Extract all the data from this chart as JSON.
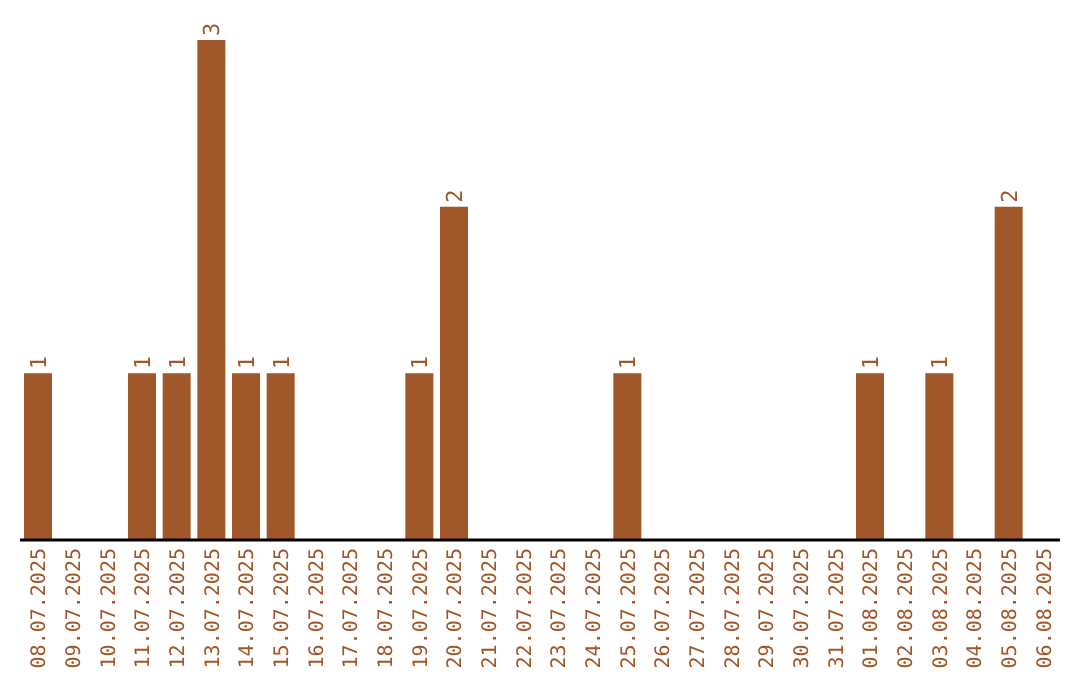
{
  "chart_data": {
    "type": "bar",
    "categories": [
      "08.07.2025",
      "09.07.2025",
      "10.07.2025",
      "11.07.2025",
      "12.07.2025",
      "13.07.2025",
      "14.07.2025",
      "15.07.2025",
      "16.07.2025",
      "17.07.2025",
      "18.07.2025",
      "19.07.2025",
      "20.07.2025",
      "21.07.2025",
      "22.07.2025",
      "23.07.2025",
      "24.07.2025",
      "25.07.2025",
      "26.07.2025",
      "27.07.2025",
      "28.07.2025",
      "29.07.2025",
      "30.07.2025",
      "31.07.2025",
      "01.08.2025",
      "02.08.2025",
      "03.08.2025",
      "04.08.2025",
      "05.08.2025",
      "06.08.2025"
    ],
    "values": [
      1,
      0,
      0,
      1,
      1,
      3,
      1,
      1,
      0,
      0,
      0,
      1,
      2,
      0,
      0,
      0,
      0,
      1,
      0,
      0,
      0,
      0,
      0,
      0,
      1,
      0,
      1,
      0,
      2,
      0
    ],
    "value_labels": [
      "1",
      null,
      null,
      "1",
      "1",
      "3",
      "1",
      "1",
      null,
      null,
      null,
      "1",
      "2",
      null,
      null,
      null,
      null,
      "1",
      null,
      null,
      null,
      null,
      null,
      null,
      "1",
      null,
      "1",
      null,
      "2",
      null
    ],
    "color": "#a0572a",
    "tick_labels": "x"
  }
}
